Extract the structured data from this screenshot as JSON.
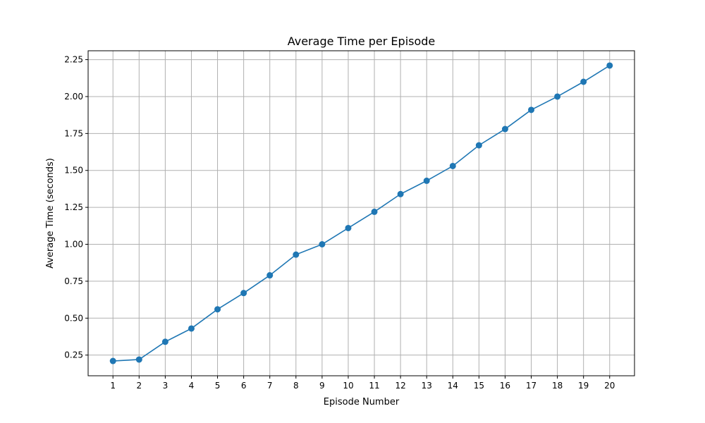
{
  "chart_data": {
    "type": "line",
    "title": "Average Time per Episode",
    "xlabel": "Episode Number",
    "ylabel": "Average Time (seconds)",
    "x": [
      1,
      2,
      3,
      4,
      5,
      6,
      7,
      8,
      9,
      10,
      11,
      12,
      13,
      14,
      15,
      16,
      17,
      18,
      19,
      20
    ],
    "y": [
      0.21,
      0.22,
      0.34,
      0.43,
      0.56,
      0.67,
      0.79,
      0.93,
      1.0,
      1.11,
      1.22,
      1.34,
      1.43,
      1.53,
      1.67,
      1.78,
      1.91,
      2.0,
      2.1,
      2.21
    ],
    "xticks": [
      1,
      2,
      3,
      4,
      5,
      6,
      7,
      8,
      9,
      10,
      11,
      12,
      13,
      14,
      15,
      16,
      17,
      18,
      19,
      20
    ],
    "yticks": [
      0.25,
      0.5,
      0.75,
      1.0,
      1.25,
      1.5,
      1.75,
      2.0,
      2.25
    ],
    "ytick_labels": [
      "0.25",
      "0.50",
      "0.75",
      "1.00",
      "1.25",
      "1.50",
      "1.75",
      "2.00",
      "2.25"
    ],
    "xlim": [
      0.05,
      20.95
    ],
    "ylim": [
      0.11,
      2.31
    ],
    "grid": true,
    "marker": "circle",
    "series_color": "#1f77b4"
  }
}
